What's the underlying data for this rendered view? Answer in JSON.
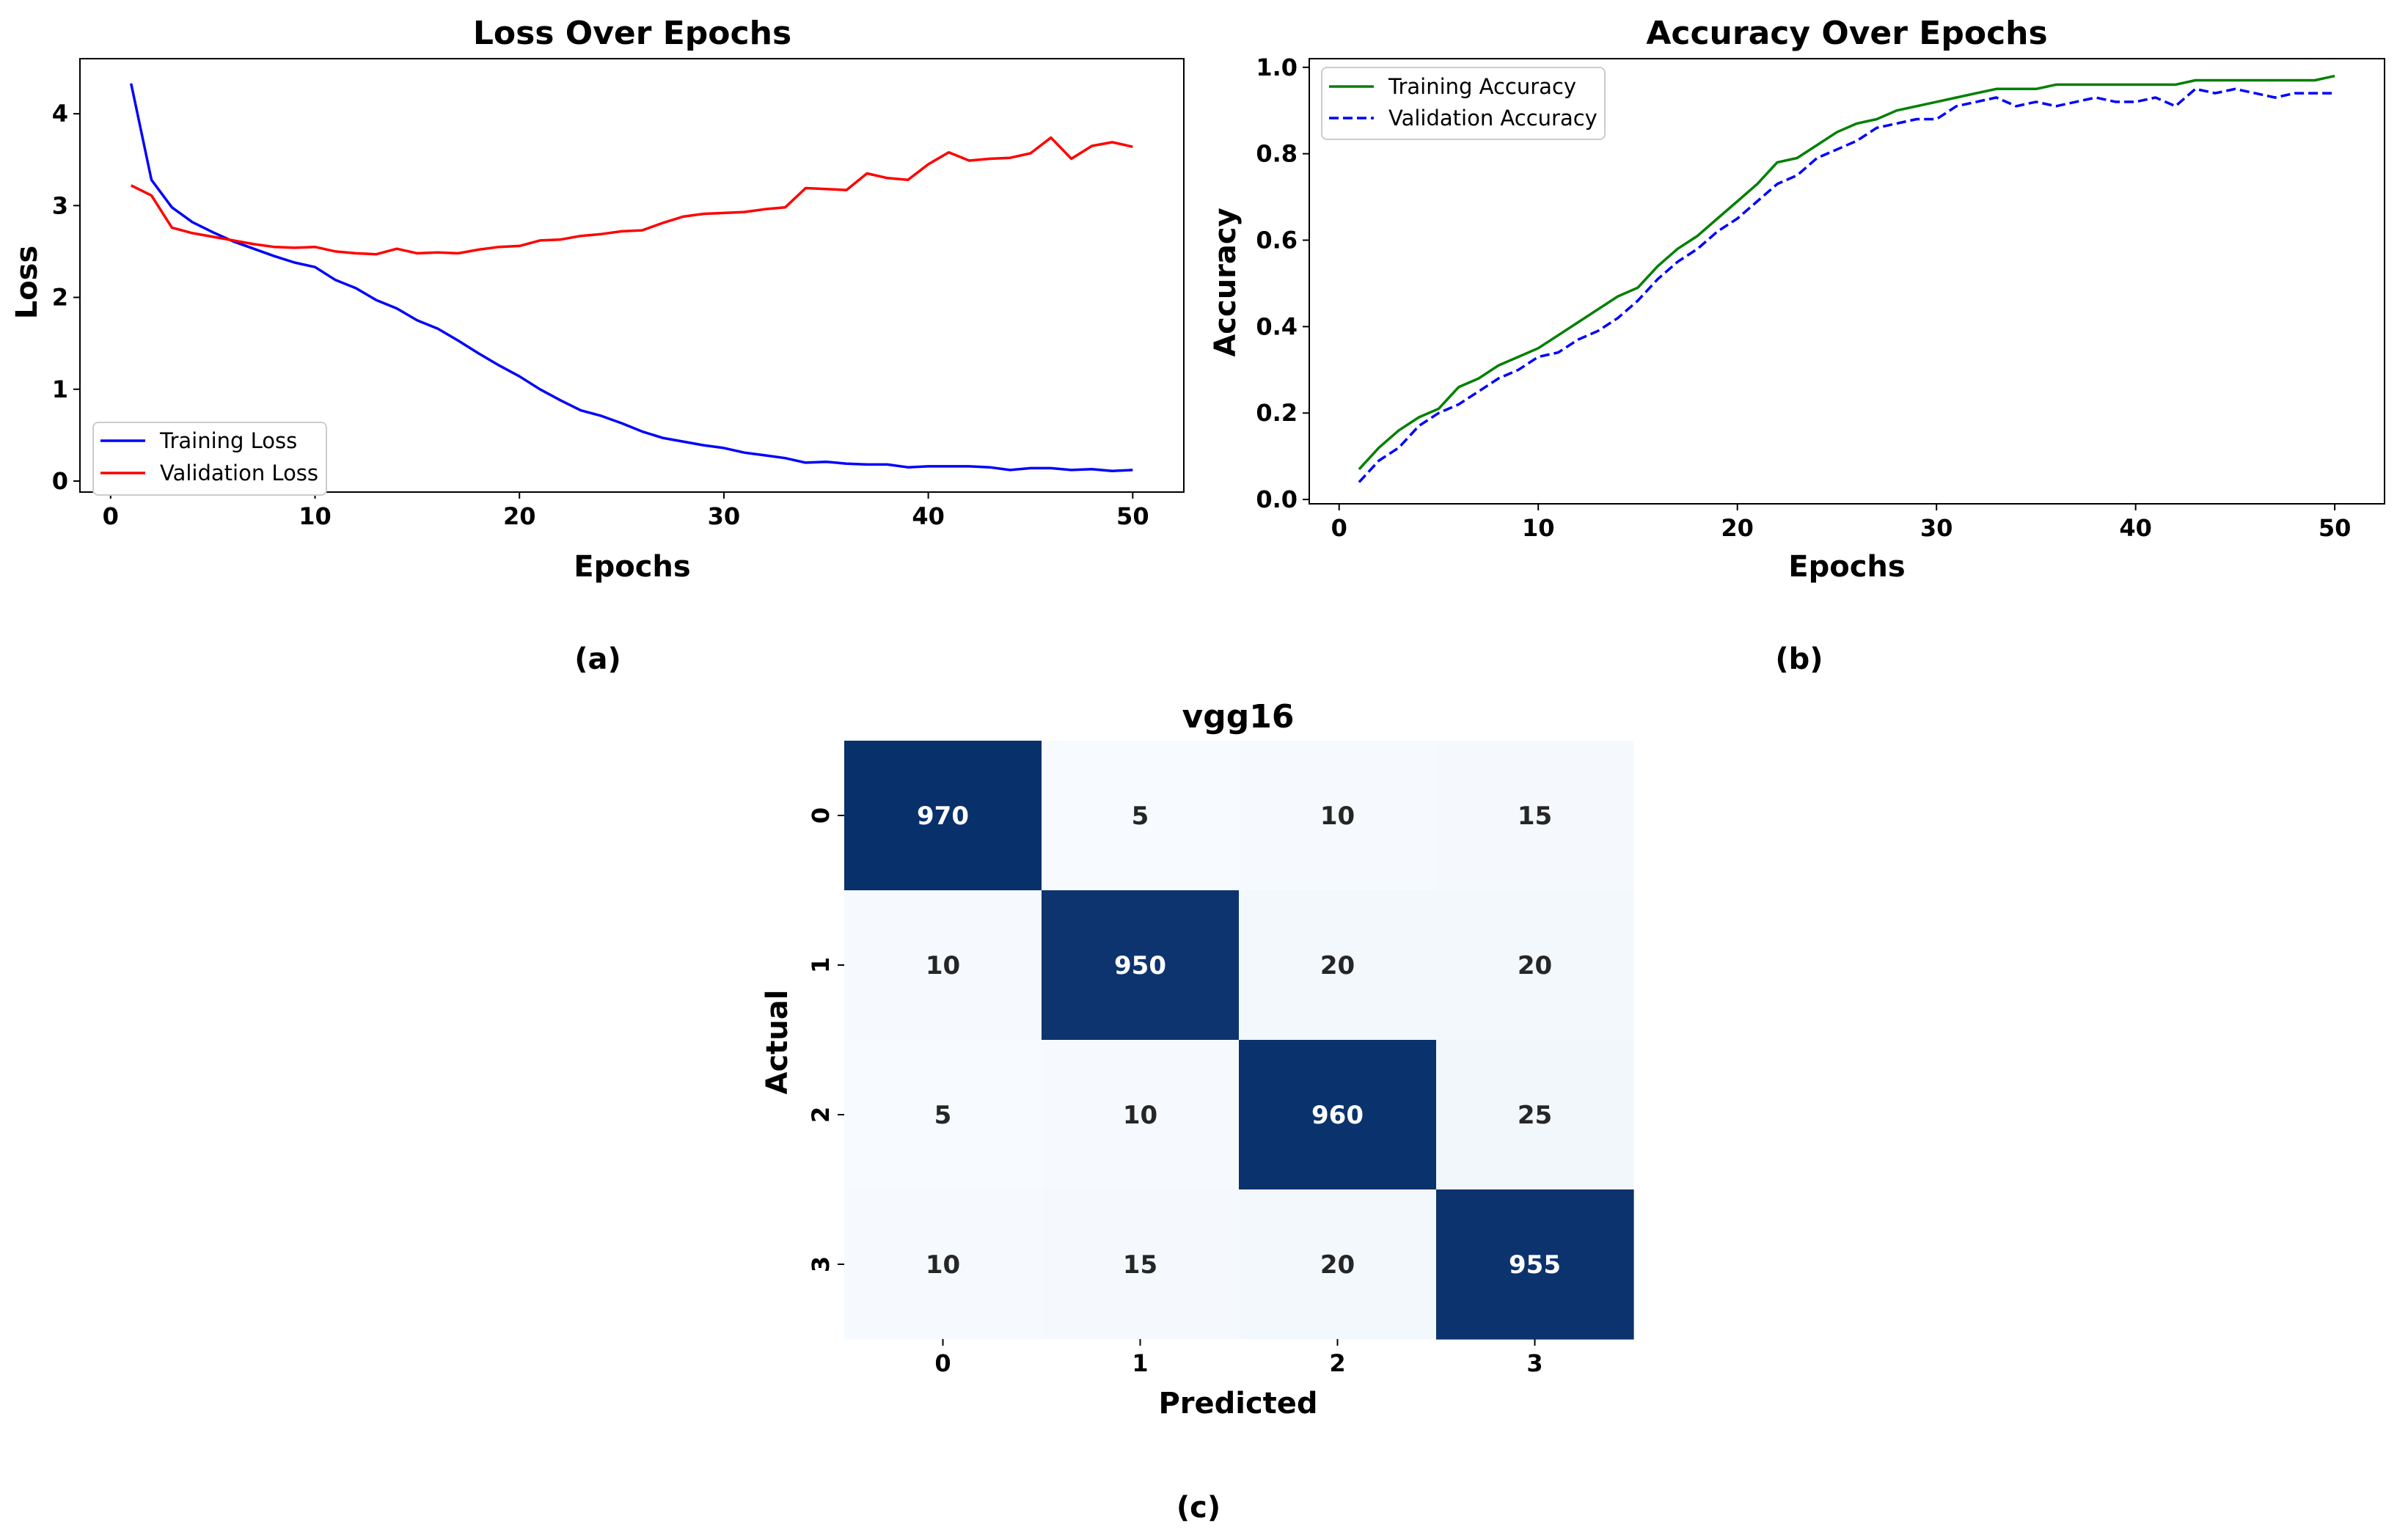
{
  "chart_data": [
    {
      "type": "line",
      "title": "Loss Over Epochs",
      "xlabel": "Epochs",
      "ylabel": "Loss",
      "caption": "(a)",
      "xlim": [
        -1.5,
        52.5
      ],
      "ylim": [
        -0.12,
        4.6
      ],
      "xticks": [
        0,
        10,
        20,
        30,
        40,
        50
      ],
      "yticks": [
        0,
        1,
        2,
        3,
        4
      ],
      "grid": false,
      "legend_position": "lower-left",
      "x": [
        1,
        2,
        3,
        4,
        5,
        6,
        7,
        8,
        9,
        10,
        11,
        12,
        13,
        14,
        15,
        16,
        17,
        18,
        19,
        20,
        21,
        22,
        23,
        24,
        25,
        26,
        27,
        28,
        29,
        30,
        31,
        32,
        33,
        34,
        35,
        36,
        37,
        38,
        39,
        40,
        41,
        42,
        43,
        44,
        45,
        46,
        47,
        48,
        49,
        50
      ],
      "series": [
        {
          "name": "Training Loss",
          "color": "#0000ff",
          "style": "solid",
          "values": [
            4.33,
            3.28,
            2.98,
            2.82,
            2.71,
            2.61,
            2.53,
            2.45,
            2.38,
            2.33,
            2.19,
            2.1,
            1.97,
            1.88,
            1.75,
            1.66,
            1.53,
            1.39,
            1.26,
            1.14,
            1.0,
            0.88,
            0.77,
            0.71,
            0.63,
            0.54,
            0.47,
            0.43,
            0.39,
            0.36,
            0.31,
            0.28,
            0.25,
            0.2,
            0.21,
            0.19,
            0.18,
            0.18,
            0.15,
            0.16,
            0.16,
            0.16,
            0.15,
            0.12,
            0.14,
            0.14,
            0.12,
            0.13,
            0.11,
            0.12
          ]
        },
        {
          "name": "Validation Loss",
          "color": "#ff0000",
          "style": "solid",
          "values": [
            3.22,
            3.11,
            2.76,
            2.7,
            2.66,
            2.62,
            2.58,
            2.55,
            2.54,
            2.55,
            2.5,
            2.48,
            2.47,
            2.53,
            2.48,
            2.49,
            2.48,
            2.52,
            2.55,
            2.56,
            2.62,
            2.63,
            2.67,
            2.69,
            2.72,
            2.73,
            2.81,
            2.88,
            2.91,
            2.92,
            2.93,
            2.96,
            2.98,
            3.19,
            3.18,
            3.17,
            3.35,
            3.3,
            3.28,
            3.45,
            3.58,
            3.49,
            3.51,
            3.52,
            3.57,
            3.74,
            3.51,
            3.65,
            3.69,
            3.64
          ]
        }
      ]
    },
    {
      "type": "line",
      "title": "Accuracy Over Epochs",
      "xlabel": "Epochs",
      "ylabel": "Accuracy",
      "caption": "(b)",
      "xlim": [
        -1.5,
        52.5
      ],
      "ylim": [
        -0.01,
        1.02
      ],
      "xticks": [
        0,
        10,
        20,
        30,
        40,
        50
      ],
      "yticks": [
        "0.0",
        "0.2",
        "0.4",
        "0.6",
        "0.8",
        "1.0"
      ],
      "grid": false,
      "legend_position": "top-left",
      "x": [
        1,
        2,
        3,
        4,
        5,
        6,
        7,
        8,
        9,
        10,
        11,
        12,
        13,
        14,
        15,
        16,
        17,
        18,
        19,
        20,
        21,
        22,
        23,
        24,
        25,
        26,
        27,
        28,
        29,
        30,
        31,
        32,
        33,
        34,
        35,
        36,
        37,
        38,
        39,
        40,
        41,
        42,
        43,
        44,
        45,
        46,
        47,
        48,
        49,
        50
      ],
      "series": [
        {
          "name": "Training Accuracy",
          "color": "#008000",
          "style": "solid",
          "values": [
            0.07,
            0.12,
            0.16,
            0.19,
            0.21,
            0.26,
            0.28,
            0.31,
            0.33,
            0.35,
            0.38,
            0.41,
            0.44,
            0.47,
            0.49,
            0.54,
            0.58,
            0.61,
            0.65,
            0.69,
            0.73,
            0.78,
            0.79,
            0.82,
            0.85,
            0.87,
            0.88,
            0.9,
            0.91,
            0.92,
            0.93,
            0.94,
            0.95,
            0.95,
            0.95,
            0.96,
            0.96,
            0.96,
            0.96,
            0.96,
            0.96,
            0.96,
            0.97,
            0.97,
            0.97,
            0.97,
            0.97,
            0.97,
            0.97,
            0.98
          ]
        },
        {
          "name": "Validation Accuracy",
          "color": "#0000ff",
          "style": "dashed",
          "values": [
            0.04,
            0.09,
            0.12,
            0.17,
            0.2,
            0.22,
            0.25,
            0.28,
            0.3,
            0.33,
            0.34,
            0.37,
            0.39,
            0.42,
            0.46,
            0.51,
            0.55,
            0.58,
            0.62,
            0.65,
            0.69,
            0.73,
            0.75,
            0.79,
            0.81,
            0.83,
            0.86,
            0.87,
            0.88,
            0.88,
            0.91,
            0.92,
            0.93,
            0.91,
            0.92,
            0.91,
            0.92,
            0.93,
            0.92,
            0.92,
            0.93,
            0.91,
            0.95,
            0.94,
            0.95,
            0.94,
            0.93,
            0.94,
            0.94,
            0.94
          ]
        }
      ]
    },
    {
      "type": "heatmap",
      "title": "vgg16",
      "xlabel": "Predicted",
      "ylabel": "Actual",
      "caption": "(c)",
      "x_categories": [
        "0",
        "1",
        "2",
        "3"
      ],
      "y_categories": [
        "0",
        "1",
        "2",
        "3"
      ],
      "values": [
        [
          970,
          5,
          10,
          15
        ],
        [
          10,
          950,
          20,
          20
        ],
        [
          5,
          10,
          960,
          25
        ],
        [
          10,
          15,
          20,
          955
        ]
      ],
      "colormap": {
        "low": "#f7fbff",
        "high": "#08306b"
      },
      "colorbar": false
    }
  ]
}
